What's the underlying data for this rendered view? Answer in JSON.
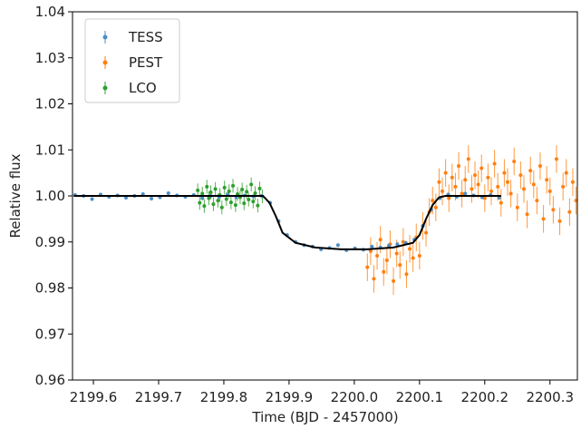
{
  "chart_data": {
    "type": "scatter",
    "xlabel": "Time (BJD - 2457000)",
    "ylabel": "Relative flux",
    "xlim": [
      2199.568,
      2200.342
    ],
    "ylim": [
      0.96,
      1.04
    ],
    "xticks": [
      2199.6,
      2199.7,
      2199.8,
      2199.9,
      {
        "value": 2200,
        "label": "2200.0"
      },
      2200.1,
      2200.2,
      2200.3
    ],
    "yticks": [
      0.96,
      0.97,
      0.98,
      0.99,
      {
        "value": 1,
        "label": "1.00"
      },
      1.01,
      1.02,
      1.03,
      1.04
    ],
    "legend": "upper left",
    "series": [
      {
        "name": "TESS",
        "color": "#4c8ec4",
        "error": 0.0004,
        "x": [
          2199.572,
          2199.585,
          2199.598,
          2199.611,
          2199.624,
          2199.637,
          2199.65,
          2199.663,
          2199.676,
          2199.689,
          2199.702,
          2199.715,
          2199.728,
          2199.741,
          2199.754,
          2199.767,
          2199.78,
          2199.793,
          2199.806,
          2199.819,
          2199.832,
          2199.845,
          2199.858,
          2199.871,
          2199.884,
          2199.897,
          2199.91,
          2199.923,
          2199.936,
          2199.949,
          2199.962,
          2199.975,
          2199.988,
          2200.001,
          2200.014,
          2200.027,
          2200.04,
          2200.053,
          2200.066,
          2200.079,
          2200.092,
          2200.105,
          2200.118,
          2200.131,
          2200.144,
          2200.157,
          2200.17,
          2200.183,
          2200.196,
          2200.209,
          2200.222
        ],
        "values": [
          1.0002,
          1.0,
          0.9993,
          1.0003,
          0.9998,
          1.0001,
          0.9996,
          1.0,
          1.0004,
          0.9994,
          0.9997,
          1.0006,
          1.0001,
          0.9998,
          1.0002,
          0.9995,
          1.0,
          0.9998,
          1.0003,
          0.9997,
          1.0001,
          0.9999,
          1.0,
          0.9985,
          0.9945,
          0.9915,
          0.99,
          0.9893,
          0.989,
          0.9884,
          0.9887,
          0.9893,
          0.9882,
          0.9886,
          0.9883,
          0.989,
          0.9888,
          0.9892,
          0.9895,
          0.9898,
          0.9905,
          0.9935,
          0.997,
          0.9995,
          1.0003,
          0.9998,
          1.0005,
          1.0001,
          0.9997,
          1.0002,
          0.9996
        ]
      },
      {
        "name": "PEST",
        "color": "#ff7f0e",
        "error": 0.003,
        "x": [
          2200.02,
          2200.025,
          2200.03,
          2200.035,
          2200.04,
          2200.045,
          2200.05,
          2200.055,
          2200.06,
          2200.065,
          2200.07,
          2200.075,
          2200.08,
          2200.085,
          2200.09,
          2200.095,
          2200.1,
          2200.105,
          2200.11,
          2200.115,
          2200.12,
          2200.125,
          2200.13,
          2200.135,
          2200.14,
          2200.145,
          2200.15,
          2200.155,
          2200.16,
          2200.165,
          2200.17,
          2200.175,
          2200.18,
          2200.185,
          2200.19,
          2200.195,
          2200.2,
          2200.205,
          2200.21,
          2200.215,
          2200.22,
          2200.225,
          2200.23,
          2200.235,
          2200.24,
          2200.245,
          2200.25,
          2200.255,
          2200.26,
          2200.265,
          2200.27,
          2200.275,
          2200.28,
          2200.285,
          2200.29,
          2200.295,
          2200.3,
          2200.305,
          2200.31,
          2200.315,
          2200.32,
          2200.325,
          2200.33,
          2200.335,
          2200.34
        ],
        "values": [
          0.9845,
          0.988,
          0.982,
          0.987,
          0.9905,
          0.9835,
          0.986,
          0.9895,
          0.9815,
          0.9875,
          0.985,
          0.99,
          0.983,
          0.9885,
          0.9865,
          0.991,
          0.987,
          0.9935,
          0.992,
          0.9965,
          0.999,
          0.9975,
          1.003,
          1.001,
          1.005,
          0.9995,
          1.004,
          1.002,
          1.0065,
          1.0005,
          1.0035,
          1.008,
          1.0015,
          1.0045,
          1.0025,
          1.006,
          0.9995,
          1.004,
          1.001,
          1.007,
          1.002,
          0.9985,
          1.005,
          1.003,
          1.0005,
          1.0075,
          0.9975,
          1.0045,
          1.0015,
          0.996,
          1.0055,
          1.0025,
          0.999,
          1.0065,
          0.995,
          1.0035,
          1.001,
          0.997,
          1.008,
          0.9945,
          1.002,
          1.005,
          0.9965,
          1.003,
          0.999
        ]
      },
      {
        "name": "LCO",
        "color": "#2ca02c",
        "error": 0.0015,
        "x": [
          2199.76,
          2199.763,
          2199.767,
          2199.77,
          2199.774,
          2199.777,
          2199.78,
          2199.784,
          2199.787,
          2199.791,
          2199.794,
          2199.797,
          2199.801,
          2199.804,
          2199.808,
          2199.811,
          2199.814,
          2199.818,
          2199.821,
          2199.825,
          2199.828,
          2199.831,
          2199.835,
          2199.838,
          2199.842,
          2199.845,
          2199.848,
          2199.852,
          2199.855,
          2199.859
        ],
        "values": [
          1.0012,
          0.9985,
          1.0005,
          0.9978,
          1.002,
          0.9995,
          1.0008,
          0.9982,
          1.0015,
          0.999,
          1.0002,
          0.9975,
          1.0018,
          0.9993,
          1.001,
          0.9986,
          1.0022,
          0.998,
          1.0004,
          0.9997,
          1.0014,
          0.9984,
          1.0009,
          0.9992,
          1.0025,
          0.9988,
          1.0006,
          0.9979,
          1.0016,
          0.9999
        ]
      }
    ],
    "model": {
      "color": "#000000",
      "x": [
        2199.57,
        2199.86,
        2199.87,
        2199.88,
        2199.89,
        2199.91,
        2199.94,
        2199.98,
        2200.02,
        2200.06,
        2200.09,
        2200.1,
        2200.11,
        2200.12,
        2200.13,
        2200.14,
        2200.225
      ],
      "values": [
        1.0,
        1.0,
        0.9985,
        0.9955,
        0.992,
        0.9898,
        0.9888,
        0.9884,
        0.9884,
        0.9888,
        0.9898,
        0.9915,
        0.995,
        0.998,
        0.9997,
        1.0,
        1.0
      ]
    }
  }
}
